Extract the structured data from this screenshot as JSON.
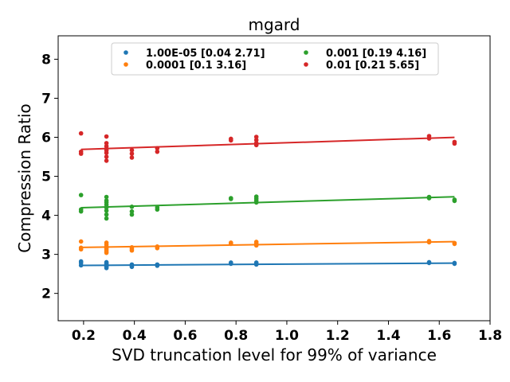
{
  "chart_data": {
    "type": "scatter",
    "title": "mgard",
    "xlabel": "SVD truncation level for 99% of variance",
    "ylabel": "Compression Ratio",
    "xlim": [
      0.1,
      1.8
    ],
    "ylim": [
      1.3,
      8.6
    ],
    "xticks": [
      "0.2",
      "0.4",
      "0.6",
      "0.8",
      "1.0",
      "1.2",
      "1.4",
      "1.6",
      "1.8"
    ],
    "yticks": [
      "2",
      "3",
      "4",
      "5",
      "6",
      "7",
      "8"
    ],
    "legend_position": "top-center",
    "grid": false,
    "series": [
      {
        "name": "1.00E-05 [0.04 2.71]",
        "color": "#1f77b4",
        "fit": {
          "slope": 0.04,
          "intercept": 2.71,
          "x_range": [
            0.19,
            1.66
          ]
        },
        "x": [
          0.19,
          0.19,
          0.19,
          0.29,
          0.29,
          0.29,
          0.29,
          0.29,
          0.29,
          0.29,
          0.39,
          0.39,
          0.39,
          0.49,
          0.49,
          0.78,
          0.78,
          0.88,
          0.88,
          0.88,
          1.56,
          1.56,
          1.66,
          1.66
        ],
        "y": [
          2.72,
          2.78,
          2.82,
          2.65,
          2.68,
          2.7,
          2.72,
          2.75,
          2.77,
          2.8,
          2.68,
          2.71,
          2.74,
          2.71,
          2.74,
          2.76,
          2.79,
          2.74,
          2.77,
          2.79,
          2.78,
          2.8,
          2.76,
          2.78
        ]
      },
      {
        "name": "0.0001 [0.1  3.16]",
        "color": "#ff7f0e",
        "fit": {
          "slope": 0.1,
          "intercept": 3.16,
          "x_range": [
            0.19,
            1.66
          ]
        },
        "x": [
          0.19,
          0.19,
          0.19,
          0.29,
          0.29,
          0.29,
          0.29,
          0.29,
          0.29,
          0.29,
          0.39,
          0.39,
          0.39,
          0.49,
          0.49,
          0.78,
          0.78,
          0.88,
          0.88,
          0.88,
          1.56,
          1.56,
          1.66,
          1.66
        ],
        "y": [
          3.13,
          3.17,
          3.33,
          3.04,
          3.08,
          3.12,
          3.16,
          3.2,
          3.25,
          3.3,
          3.1,
          3.14,
          3.18,
          3.16,
          3.2,
          3.27,
          3.3,
          3.23,
          3.28,
          3.32,
          3.31,
          3.34,
          3.27,
          3.29
        ]
      },
      {
        "name": "0.001 [0.19 4.16]",
        "color": "#2ca02c",
        "fit": {
          "slope": 0.19,
          "intercept": 4.16,
          "x_range": [
            0.19,
            1.66
          ]
        },
        "x": [
          0.19,
          0.19,
          0.19,
          0.29,
          0.29,
          0.29,
          0.29,
          0.29,
          0.29,
          0.29,
          0.29,
          0.39,
          0.39,
          0.39,
          0.49,
          0.49,
          0.78,
          0.78,
          0.88,
          0.88,
          0.88,
          0.88,
          1.56,
          1.56,
          1.66,
          1.66
        ],
        "y": [
          4.1,
          4.15,
          4.52,
          3.92,
          4.02,
          4.12,
          4.2,
          4.27,
          4.33,
          4.38,
          4.47,
          4.02,
          4.1,
          4.22,
          4.15,
          4.2,
          4.42,
          4.44,
          4.33,
          4.38,
          4.43,
          4.48,
          4.44,
          4.47,
          4.37,
          4.4
        ]
      },
      {
        "name": "0.01 [0.21 5.65]",
        "color": "#d62728",
        "fit": {
          "slope": 0.21,
          "intercept": 5.65,
          "x_range": [
            0.19,
            1.66
          ]
        },
        "x": [
          0.19,
          0.19,
          0.19,
          0.29,
          0.29,
          0.29,
          0.29,
          0.29,
          0.29,
          0.29,
          0.29,
          0.39,
          0.39,
          0.39,
          0.49,
          0.49,
          0.78,
          0.78,
          0.88,
          0.88,
          0.88,
          0.88,
          1.56,
          1.56,
          1.66,
          1.66
        ],
        "y": [
          5.58,
          5.63,
          6.1,
          5.4,
          5.5,
          5.6,
          5.66,
          5.7,
          5.77,
          5.85,
          6.02,
          5.48,
          5.58,
          5.67,
          5.63,
          5.72,
          5.92,
          5.96,
          5.8,
          5.85,
          5.93,
          6.01,
          5.97,
          6.03,
          5.84,
          5.88
        ]
      }
    ]
  }
}
